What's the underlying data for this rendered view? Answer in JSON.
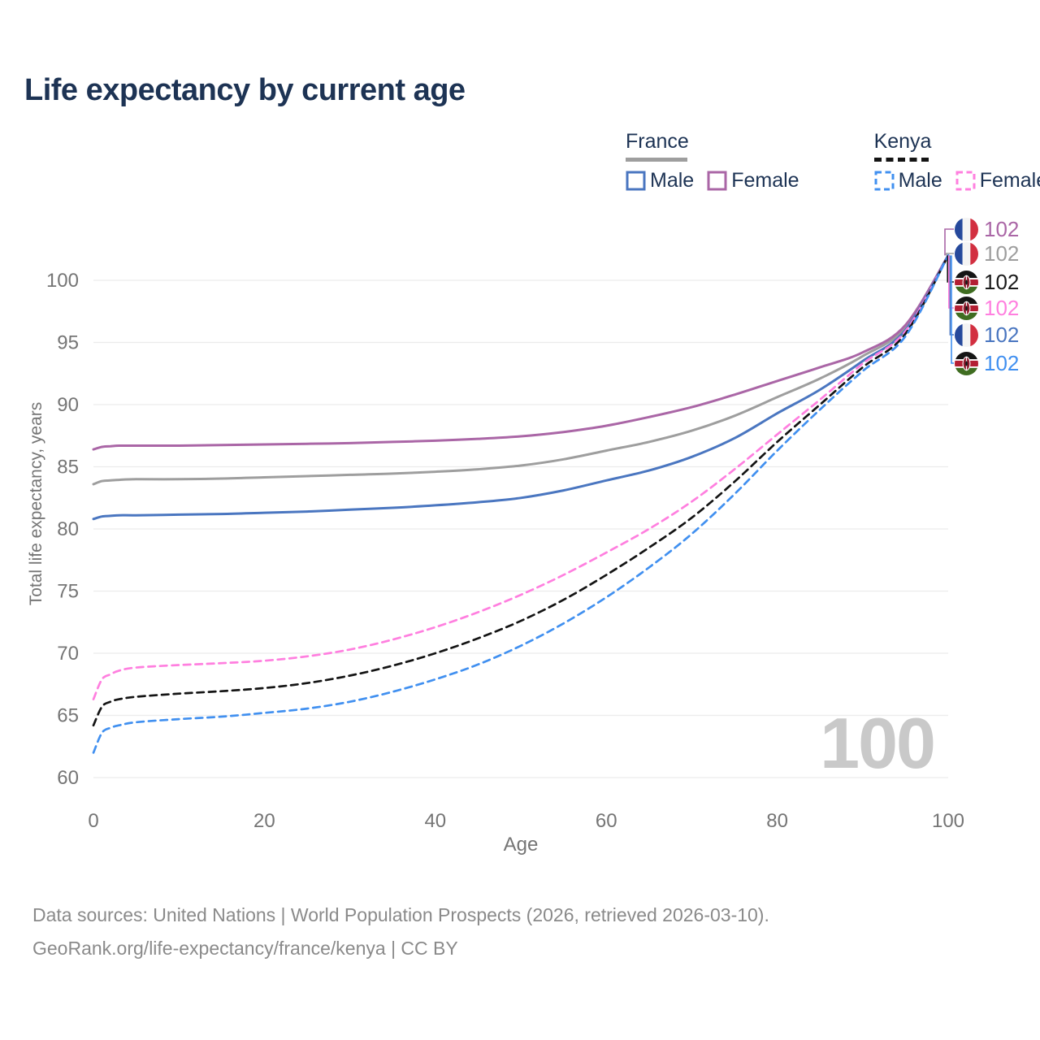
{
  "title": "Life expectancy by current age",
  "legend": {
    "france": {
      "label": "France",
      "male": "Male",
      "female": "Female"
    },
    "kenya": {
      "label": "Kenya",
      "male": "Male",
      "female": "Female"
    }
  },
  "axes": {
    "x_label": "Age",
    "y_label": "Total life expectancy, years",
    "x_ticks": [
      0,
      20,
      40,
      60,
      80,
      100
    ],
    "y_ticks": [
      60,
      65,
      70,
      75,
      80,
      85,
      90,
      95,
      100
    ]
  },
  "watermark": "100",
  "footer": {
    "line1": "Data sources: United Nations | World Population Prospects (2026, retrieved 2026-03-10).",
    "line2": "GeoRank.org/life-expectancy/france/kenya | CC BY"
  },
  "colors": {
    "title": "#1d3354",
    "axis_text": "#757575",
    "grid": "#ececec",
    "footer_text": "#8a8a8a",
    "watermark": "#c9c9c9",
    "fr_male": "#4a76c0",
    "fr_female": "#aa66a6",
    "fr_total": "#9e9e9e",
    "ke_male": "#4190f0",
    "ke_female": "#ff7fdf",
    "ke_total": "#141414"
  },
  "chart_data": {
    "type": "line",
    "title": "Life expectancy by current age",
    "xlabel": "Age",
    "ylabel": "Total life expectancy, years",
    "xlim": [
      0,
      100
    ],
    "ylim": [
      60,
      102
    ],
    "grid": "horizontal",
    "x": [
      0,
      1,
      2,
      3,
      5,
      10,
      15,
      20,
      25,
      30,
      35,
      40,
      45,
      50,
      55,
      60,
      65,
      70,
      75,
      80,
      85,
      90,
      95,
      100
    ],
    "series": [
      {
        "name": "France Total",
        "country": "France",
        "sex": "Both",
        "color": "#9e9e9e",
        "dash": false,
        "values": [
          83.6,
          83.85,
          83.9,
          83.95,
          84.0,
          84.0,
          84.05,
          84.15,
          84.25,
          84.35,
          84.45,
          84.6,
          84.8,
          85.1,
          85.6,
          86.3,
          87.0,
          87.9,
          89.1,
          90.6,
          92.1,
          93.9,
          96.2,
          102
        ]
      },
      {
        "name": "France Female",
        "country": "France",
        "sex": "Female",
        "color": "#aa66a6",
        "dash": false,
        "values": [
          86.4,
          86.6,
          86.65,
          86.7,
          86.7,
          86.7,
          86.75,
          86.8,
          86.85,
          86.9,
          87.0,
          87.1,
          87.25,
          87.45,
          87.8,
          88.3,
          89.0,
          89.8,
          90.8,
          91.9,
          93.0,
          94.2,
          96.4,
          102
        ]
      },
      {
        "name": "France Male",
        "country": "France",
        "sex": "Male",
        "color": "#4a76c0",
        "dash": false,
        "values": [
          80.8,
          81.0,
          81.05,
          81.1,
          81.1,
          81.15,
          81.2,
          81.3,
          81.4,
          81.55,
          81.7,
          81.9,
          82.15,
          82.5,
          83.1,
          83.9,
          84.7,
          85.8,
          87.3,
          89.3,
          91.2,
          93.5,
          96.0,
          102
        ]
      },
      {
        "name": "Kenya Female",
        "country": "Kenya",
        "sex": "Female",
        "color": "#ff7fdf",
        "dash": true,
        "values": [
          66.3,
          67.9,
          68.3,
          68.6,
          68.85,
          69.05,
          69.2,
          69.4,
          69.75,
          70.3,
          71.1,
          72.1,
          73.3,
          74.7,
          76.3,
          78.1,
          80.0,
          82.2,
          84.8,
          87.6,
          90.4,
          93.3,
          95.9,
          102
        ]
      },
      {
        "name": "Kenya Total",
        "country": "Kenya",
        "sex": "Both",
        "color": "#141414",
        "dash": true,
        "values": [
          64.2,
          65.7,
          66.1,
          66.3,
          66.5,
          66.75,
          66.95,
          67.2,
          67.6,
          68.2,
          69.0,
          70.0,
          71.2,
          72.6,
          74.3,
          76.3,
          78.5,
          80.9,
          83.8,
          87.0,
          90.0,
          93.0,
          95.7,
          102
        ]
      },
      {
        "name": "Kenya Male",
        "country": "Kenya",
        "sex": "Male",
        "color": "#4190f0",
        "dash": true,
        "values": [
          62.0,
          63.6,
          64.0,
          64.2,
          64.45,
          64.7,
          64.9,
          65.2,
          65.55,
          66.1,
          66.9,
          67.9,
          69.1,
          70.6,
          72.4,
          74.5,
          76.9,
          79.6,
          82.8,
          86.3,
          89.6,
          92.7,
          95.5,
          102
        ]
      }
    ],
    "end_labels": [
      {
        "series": "France Female",
        "flag": "france",
        "value": "102",
        "color": "#aa66a6",
        "row_y": 282
      },
      {
        "series": "France Total",
        "flag": "france",
        "value": "102",
        "color": "#9e9e9e",
        "row_y": 312
      },
      {
        "series": "Kenya Total",
        "flag": "kenya",
        "value": "102",
        "color": "#1a1a1a",
        "row_y": 347
      },
      {
        "series": "Kenya Female",
        "flag": "kenya",
        "value": "102",
        "color": "#ff7fdf",
        "row_y": 379
      },
      {
        "series": "France Male",
        "flag": "france",
        "value": "102",
        "color": "#4a76c0",
        "row_y": 412
      },
      {
        "series": "Kenya Male",
        "flag": "kenya",
        "value": "102",
        "color": "#4190f0",
        "row_y": 447
      }
    ],
    "legend_position": "top-right"
  }
}
